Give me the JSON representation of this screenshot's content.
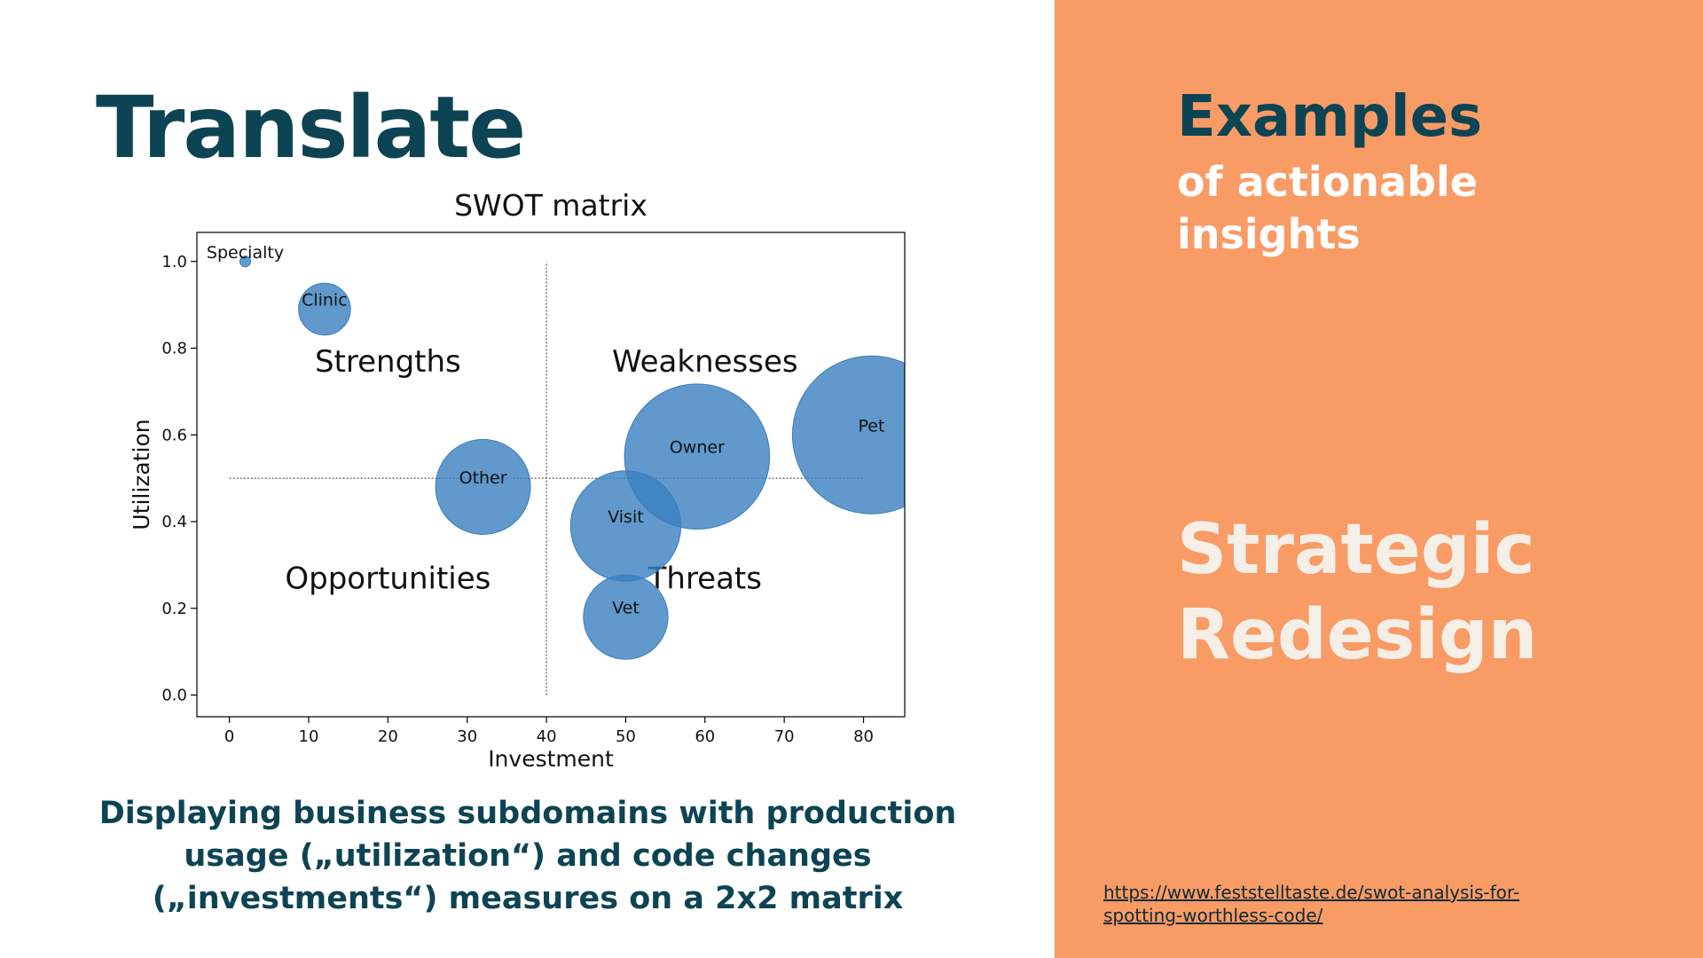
{
  "header": {
    "title": "Translate"
  },
  "chart_data": {
    "type": "scatter",
    "title": "SWOT matrix",
    "x_label": "Investment",
    "y_label": "Utilization",
    "categories": [
      "Specialty",
      "Clinic",
      "Other",
      "Visit",
      "Owner",
      "Vet",
      "Pet"
    ],
    "x": [
      2,
      12,
      32,
      50,
      59,
      50,
      81
    ],
    "values": [
      1.0,
      0.89,
      0.48,
      0.39,
      0.55,
      0.18,
      0.6
    ],
    "sizes": [
      1,
      23,
      77,
      104,
      180,
      61,
      213
    ],
    "color": "#3a7fbf",
    "xlim": [
      -4.1,
      85.2
    ],
    "ylim": [
      -0.05,
      1.067
    ],
    "xticks": [
      0,
      10,
      20,
      30,
      40,
      50,
      60,
      70,
      80
    ],
    "yticks": [
      {
        "value": 0,
        "label": "0.0"
      },
      0.2,
      0.4,
      0.6,
      0.8,
      {
        "value": 1,
        "label": "1.0"
      }
    ],
    "reference_lines": {
      "x": 40,
      "y": 0.5,
      "x_span": [
        0,
        80
      ],
      "y_span": [
        0,
        1
      ]
    },
    "annotations": [
      {
        "text": "Strengths",
        "x": 20,
        "y": 0.77
      },
      {
        "text": "Weaknesses",
        "x": 60,
        "y": 0.77
      },
      {
        "text": "Opportunities",
        "x": 20,
        "y": 0.27
      },
      {
        "text": "Threats",
        "x": 60,
        "y": 0.27
      }
    ]
  },
  "caption": "Displaying business subdomains with production usage („utilization“) and code changes („investments“) measures on a 2x2 matrix",
  "sidebar": {
    "heading": "Examples",
    "subheading": "of actionable insights",
    "highlight": "Strategic Redesign",
    "link": "https://www.feststelltaste.de/swot-analysis-for-spotting-worthless-code/"
  }
}
